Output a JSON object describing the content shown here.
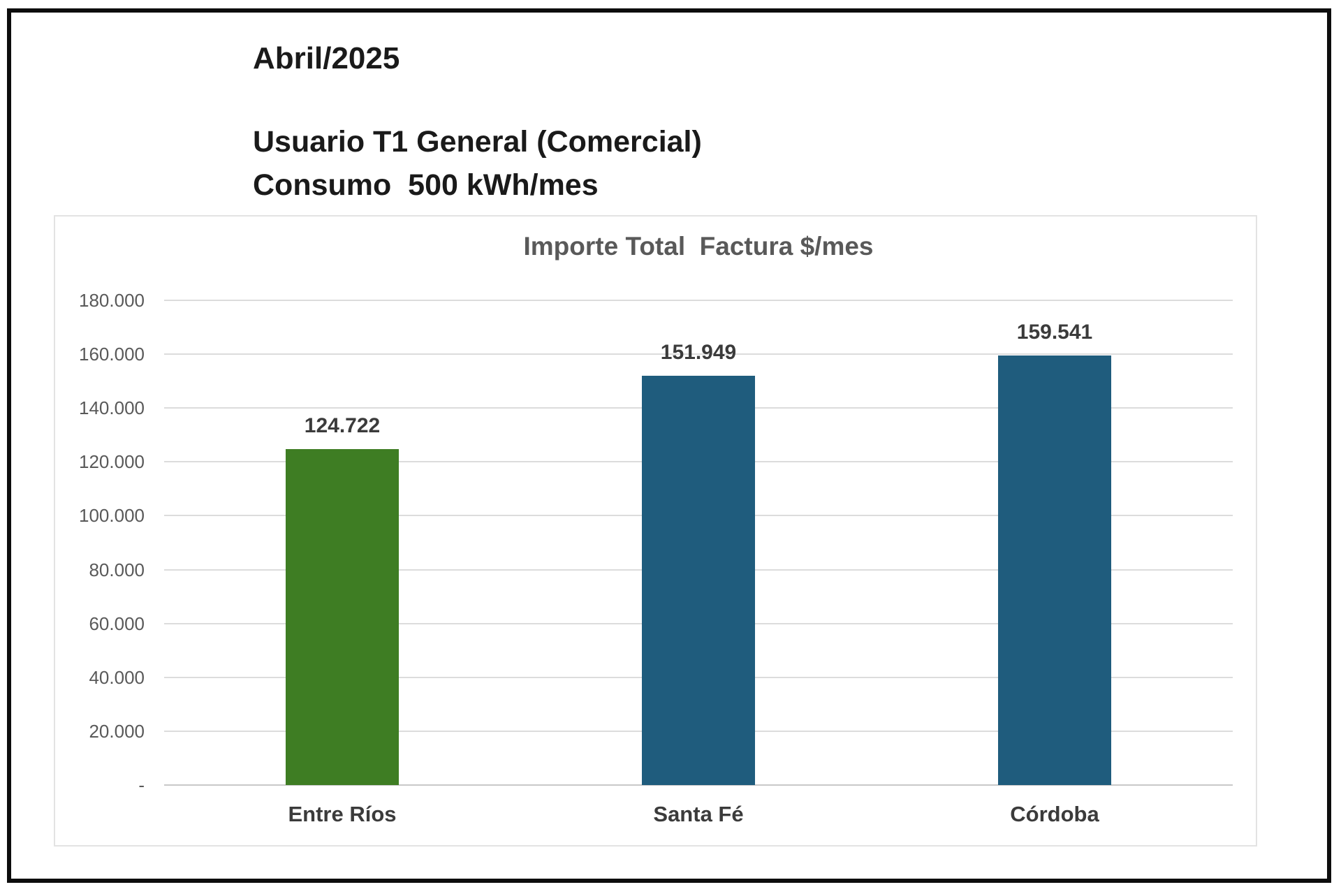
{
  "page": {
    "header": {
      "period": "Abril/2025",
      "user_type": "Usuario T1 General (Comercial)",
      "consumption": "Consumo  500 kWh/mes"
    }
  },
  "chart_data": {
    "type": "bar",
    "title": "Importe Total  Factura $/mes",
    "categories": [
      "Entre Ríos",
      "Santa Fé",
      "Córdoba"
    ],
    "values": [
      124722,
      151949,
      159541
    ],
    "value_labels": [
      "124.722",
      "151.949",
      "159.541"
    ],
    "bar_colors": [
      "#3E7D23",
      "#1F5C7D",
      "#1F5C7D"
    ],
    "xlabel": "",
    "ylabel": "",
    "ylim": [
      0,
      180000
    ],
    "ytick_step": 20000,
    "ytick_labels": [
      "180.000",
      "160.000",
      "140.000",
      "120.000",
      "100.000",
      "80.000",
      "60.000",
      "40.000",
      "20.000",
      "-"
    ],
    "grid": true,
    "legend_position": "none"
  },
  "colors": {
    "header_text": "#1a1a1a",
    "chart_title": "#595959",
    "ytick_label": "#595959",
    "data_label": "#3b3b3b",
    "category_label": "#3b3b3b",
    "gridline": "#dcdcdc",
    "zero_line": "#c8c8c8",
    "chart_border": "#e3e3e3",
    "page_border": "#0d0d0d"
  }
}
